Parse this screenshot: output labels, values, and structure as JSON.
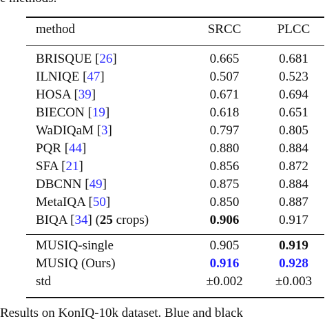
{
  "caption_fragment_top": "e methods.",
  "caption_fragment_bottom": "Results on KonIQ-10k dataset. Blue and black",
  "table": {
    "headers": [
      "method",
      "SRCC",
      "PLCC"
    ],
    "group1": [
      {
        "name": "BRISQUE",
        "ref": "26",
        "srcc": "0.665",
        "plcc": "0.681"
      },
      {
        "name": "ILNIQE",
        "ref": "47",
        "srcc": "0.507",
        "plcc": "0.523"
      },
      {
        "name": "HOSA",
        "ref": "39",
        "srcc": "0.671",
        "plcc": "0.694"
      },
      {
        "name": "BIECON",
        "ref": "19",
        "srcc": "0.618",
        "plcc": "0.651"
      },
      {
        "name": "WaDIQaM",
        "ref": "3",
        "srcc": "0.797",
        "plcc": "0.805"
      },
      {
        "name": "PQR",
        "ref": "44",
        "srcc": "0.880",
        "plcc": "0.884"
      },
      {
        "name": "SFA",
        "ref": "21",
        "srcc": "0.856",
        "plcc": "0.872"
      },
      {
        "name": "DBCNN",
        "ref": "49",
        "srcc": "0.875",
        "plcc": "0.884"
      },
      {
        "name": "MetaIQA",
        "ref": "50",
        "srcc": "0.850",
        "plcc": "0.887"
      }
    ],
    "biqa": {
      "name": "BIQA",
      "ref": "34",
      "crops_open": "(",
      "crops_num": "25",
      "crops_text": " crops)",
      "srcc": "0.906",
      "plcc": "0.917"
    },
    "group2": [
      {
        "name": "MUSIQ-single",
        "srcc": "0.905",
        "plcc": "0.919"
      },
      {
        "name": "MUSIQ (Ours)",
        "srcc": "0.916",
        "plcc": "0.928"
      },
      {
        "name": "std",
        "srcc": "±0.002",
        "plcc": "±0.003"
      }
    ]
  }
}
